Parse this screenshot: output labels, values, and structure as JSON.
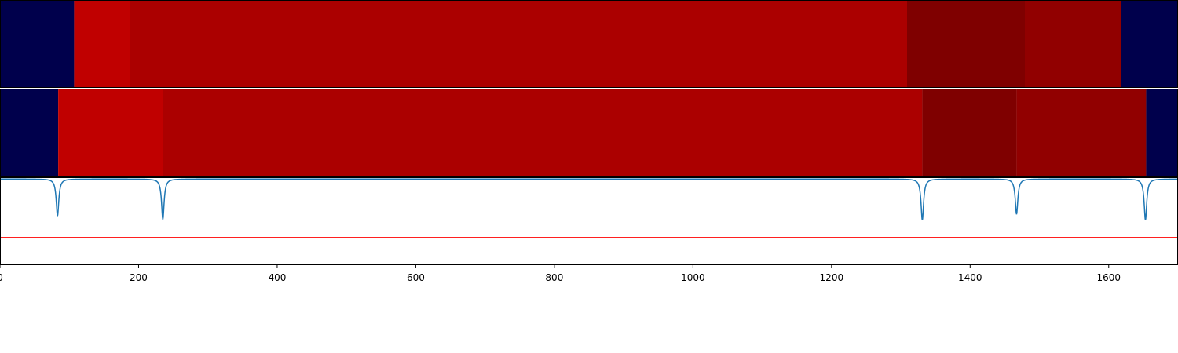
{
  "chart_data": [
    {
      "type": "heatmap",
      "panel": "top",
      "xlim": [
        0,
        1700
      ],
      "segments": [
        {
          "start": 0,
          "end": 107,
          "color": "#00004c"
        },
        {
          "start": 107,
          "end": 187,
          "color": "#c00000"
        },
        {
          "start": 187,
          "end": 1309,
          "color": "#ab0000"
        },
        {
          "start": 1309,
          "end": 1479,
          "color": "#7f0000"
        },
        {
          "start": 1479,
          "end": 1618,
          "color": "#910000"
        },
        {
          "start": 1618,
          "end": 1700,
          "color": "#00004c"
        }
      ]
    },
    {
      "type": "heatmap",
      "panel": "middle",
      "xlim": [
        0,
        1700
      ],
      "segments": [
        {
          "start": 0,
          "end": 84,
          "color": "#00004c"
        },
        {
          "start": 84,
          "end": 235,
          "color": "#c00000"
        },
        {
          "start": 235,
          "end": 1331,
          "color": "#ab0000"
        },
        {
          "start": 1331,
          "end": 1467,
          "color": "#7f0000"
        },
        {
          "start": 1467,
          "end": 1654,
          "color": "#910000"
        },
        {
          "start": 1654,
          "end": 1700,
          "color": "#00004c"
        }
      ]
    },
    {
      "type": "line",
      "panel": "bottom",
      "xlim": [
        0,
        1700
      ],
      "ylim": [
        -1.0,
        0.02
      ],
      "baseline": 0,
      "threshold": -0.68,
      "threshold_color": "#ff0000",
      "line_color": "#1f77b4",
      "dips": [
        {
          "x": 83,
          "depth": 0.43
        },
        {
          "x": 235,
          "depth": 0.47
        },
        {
          "x": 1331,
          "depth": 0.48
        },
        {
          "x": 1467,
          "depth": 0.41
        },
        {
          "x": 1653,
          "depth": 0.48
        }
      ],
      "xticks": [
        0,
        200,
        400,
        600,
        800,
        1000,
        1200,
        1400,
        1600
      ],
      "xtick_labels": [
        "0",
        "200",
        "400",
        "600",
        "800",
        "1000",
        "1200",
        "1400",
        "1600"
      ],
      "xlabel": "",
      "ylabel": "",
      "title": ""
    }
  ]
}
